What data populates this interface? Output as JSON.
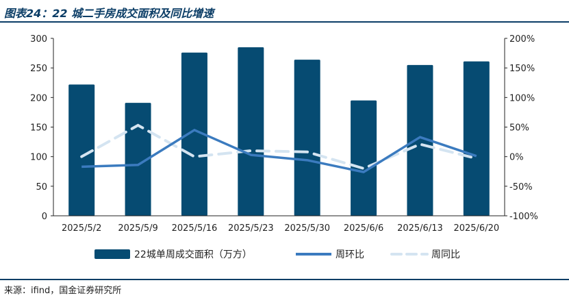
{
  "figure": {
    "title": "图表24：22 城二手房成交面积及同比增速",
    "source": "来源：ifind，国金证券研究所"
  },
  "colors": {
    "bar": "#064b72",
    "wow_line": "#3b7bbf",
    "yoy_line": "#d4e4f1",
    "axis": "#222222",
    "rule": "#0b3d66"
  },
  "chart_data": {
    "type": "bar",
    "categories": [
      "2025/5/2",
      "2025/5/9",
      "2025/5/16",
      "2025/5/23",
      "2025/5/30",
      "2025/6/6",
      "2025/6/13",
      "2025/6/20"
    ],
    "series": [
      {
        "name": "22城单周成交面积（万方）",
        "type": "bar",
        "axis": "left",
        "values": [
          222,
          191,
          276,
          285,
          264,
          195,
          255,
          261
        ]
      },
      {
        "name": "周环比",
        "type": "line",
        "axis": "right",
        "unit": "%",
        "values": [
          -17,
          -14,
          45,
          3,
          -6,
          -26,
          33,
          1
        ]
      },
      {
        "name": "周同比",
        "type": "line",
        "axis": "right",
        "unit": "%",
        "style": "dashed",
        "values": [
          0,
          53,
          0,
          10,
          8,
          -20,
          21,
          -3
        ]
      }
    ],
    "left_axis": {
      "ylim": [
        0,
        300
      ],
      "ticks": [
        "0",
        "50",
        "100",
        "150",
        "200",
        "250",
        "300"
      ]
    },
    "right_axis": {
      "ylim": [
        -100,
        200
      ],
      "ticks": [
        "-100%",
        "-50%",
        "0%",
        "50%",
        "100%",
        "150%",
        "200%"
      ]
    },
    "grid": false,
    "legend_position": "bottom"
  }
}
